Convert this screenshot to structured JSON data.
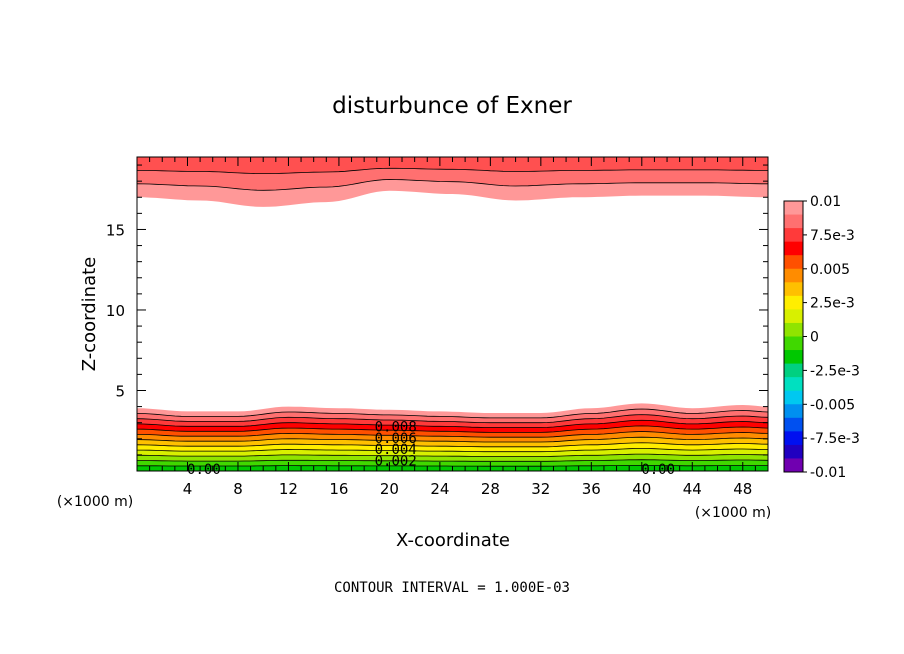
{
  "chart_data": {
    "type": "heatmap",
    "title": "disturbunce of Exner",
    "xlabel": "X-coordinate",
    "ylabel": "Z-coordinate",
    "x_unit_left": "(×1000 m)",
    "x_unit_right": "(×1000 m)",
    "footer": "CONTOUR INTERVAL = 1.000E-03",
    "xlim": [
      0,
      50
    ],
    "ylim": [
      0,
      19.5
    ],
    "x_ticks": [
      4,
      8,
      12,
      16,
      20,
      24,
      28,
      32,
      36,
      40,
      44,
      48
    ],
    "x_tick_labels": [
      "4",
      "8",
      "12",
      "16",
      "20",
      "24",
      "28",
      "32",
      "36",
      "40",
      "44",
      "48"
    ],
    "y_ticks": [
      5,
      10,
      15
    ],
    "y_tick_labels": [
      "5",
      "10",
      "15"
    ],
    "colorbar": {
      "range": [
        -0.01,
        0.01
      ],
      "labels": [
        "0.01",
        "7.5e-3",
        "0.005",
        "2.5e-3",
        "0",
        "-2.5e-3",
        "-0.005",
        "-7.5e-3",
        "-0.01"
      ],
      "label_values": [
        0.01,
        0.0075,
        0.005,
        0.0025,
        0,
        -0.0025,
        -0.005,
        -0.0075,
        -0.01
      ],
      "colors_top_to_bottom": [
        "#ff9898",
        "#ff7070",
        "#ff3a3a",
        "#ff0000",
        "#ff5000",
        "#ff8c00",
        "#ffc000",
        "#ffee00",
        "#d8f000",
        "#90e400",
        "#40d800",
        "#00c800",
        "#00d080",
        "#00e0c0",
        "#00c8f0",
        "#0090f0",
        "#0050f0",
        "#0010f0",
        "#2000c0",
        "#7000b0"
      ]
    },
    "contour_labels": [
      "0.008",
      "0.006",
      "0.004",
      "0.002",
      "0.00",
      "0.00"
    ],
    "lower_layer": {
      "x": [
        0,
        4,
        8,
        12,
        16,
        20,
        24,
        28,
        32,
        36,
        40,
        44,
        48,
        50
      ],
      "top_z": [
        3.9,
        3.7,
        3.7,
        4.0,
        3.9,
        3.8,
        3.7,
        3.6,
        3.6,
        3.9,
        4.2,
        3.9,
        4.1,
        4.0
      ]
    },
    "upper_layer": {
      "x": [
        0,
        5,
        10,
        15,
        20,
        25,
        30,
        35,
        40,
        45,
        50
      ],
      "bottom_z": [
        17.0,
        16.8,
        16.4,
        16.7,
        17.4,
        17.2,
        16.8,
        17.0,
        17.1,
        17.1,
        17.0
      ]
    },
    "grid": false
  }
}
